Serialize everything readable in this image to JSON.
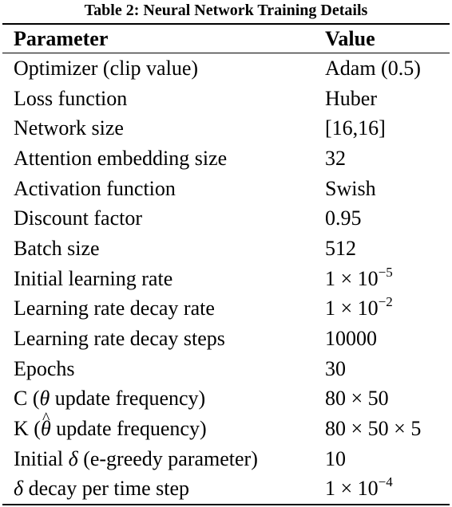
{
  "caption": "Table 2: Neural Network Training Details",
  "headers": {
    "parameter": "Parameter",
    "value": "Value"
  },
  "rows": [
    {
      "parameter": "Optimizer (clip value)",
      "value": "Adam (0.5)"
    },
    {
      "parameter": "Loss function",
      "value": "Huber"
    },
    {
      "parameter": "Network size",
      "value": "[16,16]"
    },
    {
      "parameter": "Attention embedding size",
      "value": "32"
    },
    {
      "parameter": "Activation function",
      "value": "Swish"
    },
    {
      "parameter": "Discount factor",
      "value": "0.95"
    },
    {
      "parameter": "Batch size",
      "value": "512"
    },
    {
      "parameter": "Initial learning rate",
      "value_base": "1 × 10",
      "value_exp": "−5"
    },
    {
      "parameter": "Learning rate decay rate",
      "value_base": "1 × 10",
      "value_exp": "−2"
    },
    {
      "parameter": "Learning rate decay steps",
      "value": "10000"
    },
    {
      "parameter": "Epochs",
      "value": "30"
    },
    {
      "parameter_pre": "C (",
      "parameter_sym": "θ",
      "parameter_post": " update frequency)",
      "value": "80 × 50"
    },
    {
      "parameter_pre": "K (",
      "parameter_sym": "θ",
      "parameter_post": " update frequency)",
      "value": "80 × 50 × 5"
    },
    {
      "parameter_pre": "Initial ",
      "parameter_sym": "δ",
      "parameter_post": " (e-greedy parameter)",
      "value": "10"
    },
    {
      "parameter_pre": "",
      "parameter_sym": "δ",
      "parameter_post": " decay per time step",
      "value_base": "1 × 10",
      "value_exp": "−4"
    }
  ]
}
